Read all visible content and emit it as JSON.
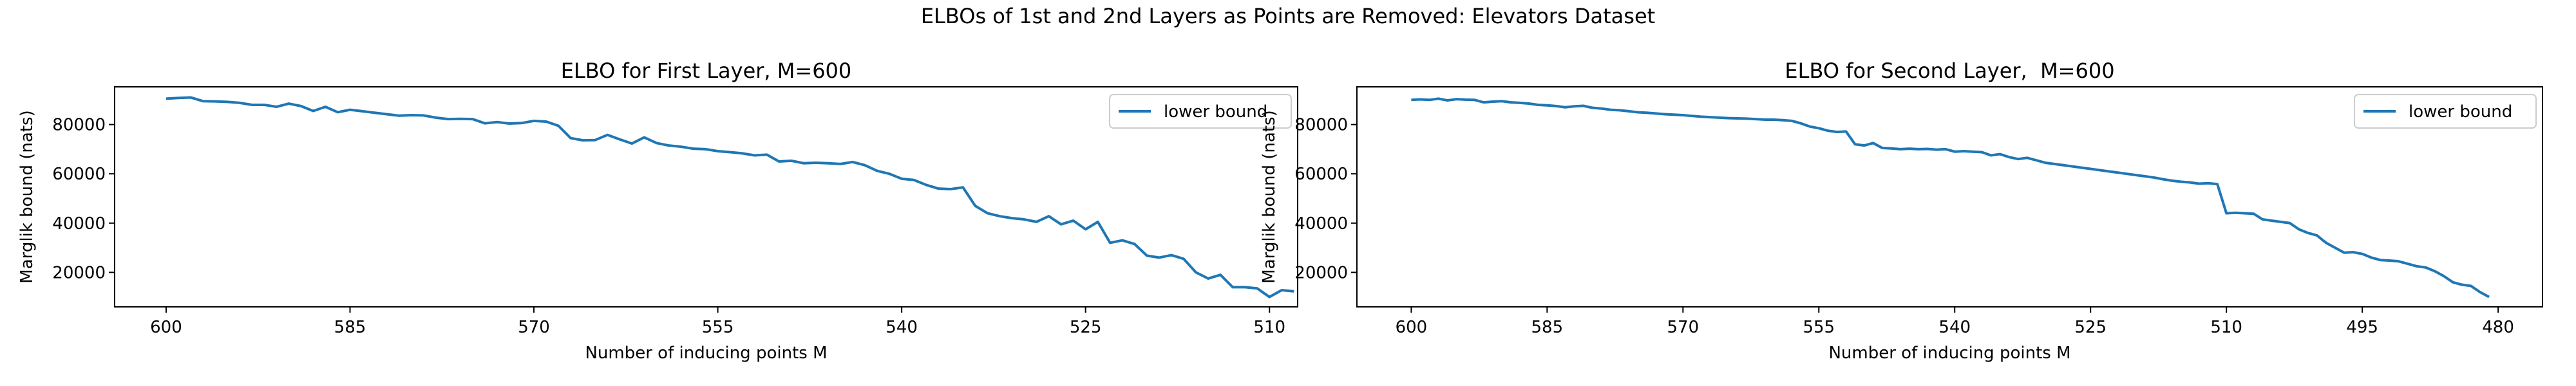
{
  "title": "ELBOs of 1st and 2nd Layers as Points are Removed: Elevators Dataset",
  "chart_data": [
    {
      "type": "line",
      "title": "ELBO for First Layer, M=600",
      "x_label": "Number of inducing points M",
      "y_label": "Marglik bound (nats)",
      "x": [
        600,
        599,
        598,
        597,
        596,
        595,
        594,
        593,
        592,
        591,
        590,
        589,
        588,
        587,
        586,
        585,
        584,
        583,
        582,
        581,
        580,
        579,
        578,
        577,
        576,
        575,
        574,
        573,
        572,
        571,
        570,
        569,
        568,
        567,
        566,
        565,
        564,
        563,
        562,
        561,
        560,
        559,
        558,
        557,
        556,
        555,
        554,
        553,
        552,
        551,
        550,
        549,
        548,
        547,
        546,
        545,
        544,
        543,
        542,
        541,
        540,
        539,
        538,
        537,
        536,
        535,
        534,
        533,
        532,
        531,
        530,
        529,
        528,
        527,
        526,
        525,
        524,
        523,
        522,
        521,
        520,
        519,
        518,
        517,
        516,
        515,
        514,
        513,
        512,
        511,
        510,
        509,
        508
      ],
      "series": [
        {
          "name": "lower bound",
          "color": "#1f77b4",
          "values": [
            90500,
            90800,
            91000,
            89500,
            89400,
            89200,
            88800,
            88000,
            88000,
            87200,
            88500,
            87500,
            85500,
            87200,
            85000,
            86000,
            85400,
            84800,
            84200,
            83600,
            83800,
            83700,
            82800,
            82200,
            82300,
            82200,
            80500,
            81000,
            80400,
            80600,
            81500,
            81200,
            79500,
            74500,
            73600,
            73700,
            75800,
            74000,
            72300,
            74800,
            72500,
            71500,
            71000,
            70200,
            70000,
            69200,
            68800,
            68300,
            67500,
            67800,
            65000,
            65300,
            64300,
            64500,
            64300,
            64000,
            64800,
            63500,
            61200,
            60000,
            58000,
            57500,
            55500,
            54000,
            53800,
            54500,
            47000,
            44000,
            42800,
            42000,
            41500,
            40500,
            42800,
            39500,
            41000,
            37500,
            40500,
            32000,
            33000,
            31500,
            26800,
            26000,
            27000,
            25500,
            20000,
            17500,
            19000,
            14000,
            14000,
            13500,
            10000,
            12800,
            12300
          ]
        }
      ],
      "xlim": [
        604.2,
        507.7
      ],
      "xticks": [
        600,
        585,
        570,
        555,
        540,
        525,
        510
      ],
      "ylim": [
        6000,
        95300
      ],
      "yticks": [
        20000,
        40000,
        60000,
        80000
      ],
      "legend": "upper right"
    },
    {
      "type": "line",
      "title": "ELBO for Second Layer,  M=600",
      "x_label": "Number of inducing points M",
      "y_label": "Marglik bound (nats)",
      "x": [
        600,
        599,
        598,
        597,
        596,
        595,
        594,
        593,
        592,
        591,
        590,
        589,
        588,
        587,
        586,
        585,
        584,
        583,
        582,
        581,
        580,
        579,
        578,
        577,
        576,
        575,
        574,
        573,
        572,
        571,
        570,
        569,
        568,
        567,
        566,
        565,
        564,
        563,
        562,
        561,
        560,
        559,
        558,
        557,
        556,
        555,
        554,
        553,
        552,
        551,
        550,
        549,
        548,
        547,
        546,
        545,
        544,
        543,
        542,
        541,
        540,
        539,
        538,
        537,
        536,
        535,
        534,
        533,
        532,
        531,
        530,
        529,
        528,
        527,
        526,
        525,
        524,
        523,
        522,
        521,
        520,
        519,
        518,
        517,
        516,
        515,
        514,
        513,
        512,
        511,
        510,
        509,
        508,
        507,
        506,
        505,
        504,
        503,
        502,
        501,
        500,
        499,
        498,
        497,
        496,
        495,
        494,
        493,
        492,
        491,
        490,
        489,
        488,
        487,
        486,
        485,
        484,
        483,
        482,
        481
      ],
      "series": [
        {
          "name": "lower bound",
          "color": "#1f77b4",
          "values": [
            90000,
            90200,
            90000,
            90500,
            89800,
            90300,
            90100,
            90000,
            89000,
            89300,
            89500,
            89000,
            88800,
            88500,
            88000,
            87800,
            87500,
            87000,
            87400,
            87600,
            86800,
            86500,
            86000,
            85800,
            85400,
            85000,
            84800,
            84500,
            84200,
            84000,
            83800,
            83500,
            83200,
            83000,
            82800,
            82600,
            82500,
            82400,
            82200,
            82000,
            82000,
            81800,
            81500,
            80500,
            79200,
            78500,
            77500,
            77000,
            77200,
            72000,
            71500,
            72500,
            70500,
            70300,
            70000,
            70200,
            70000,
            70100,
            69800,
            70000,
            69000,
            69200,
            69000,
            68800,
            67500,
            68000,
            66800,
            66000,
            66500,
            65500,
            64500,
            64000,
            63500,
            63000,
            62500,
            62000,
            61500,
            61000,
            60500,
            60000,
            59500,
            59000,
            58500,
            57800,
            57200,
            56800,
            56500,
            56000,
            56200,
            55800,
            44000,
            44200,
            44000,
            43800,
            41500,
            41000,
            40500,
            40000,
            37500,
            36000,
            35000,
            32000,
            30000,
            28000,
            28200,
            27500,
            26000,
            25000,
            24800,
            24500,
            23500,
            22500,
            22000,
            20500,
            18500,
            16000,
            15000,
            14500,
            12000,
            10000
          ]
        }
      ],
      "xlim": [
        606.0,
        475.1
      ],
      "xticks": [
        600,
        585,
        570,
        555,
        540,
        525,
        510,
        495,
        480
      ],
      "ylim": [
        6000,
        95300
      ],
      "yticks": [
        20000,
        40000,
        60000,
        80000
      ],
      "legend": "upper right"
    }
  ]
}
